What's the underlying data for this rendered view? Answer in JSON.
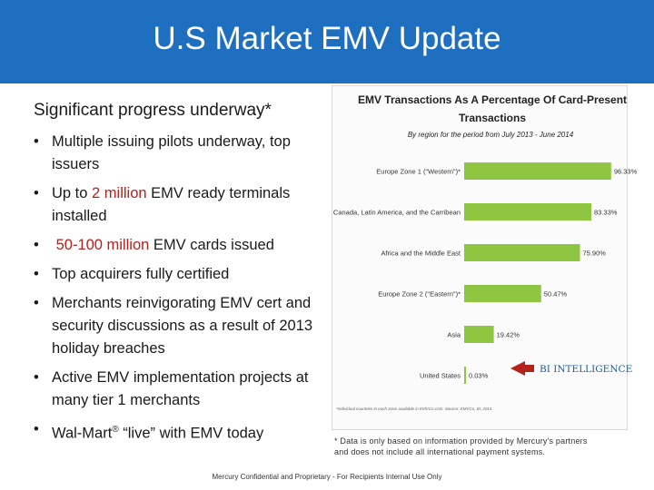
{
  "header": {
    "title": "U.S Market EMV Update"
  },
  "main": {
    "subtitle": "Significant progress underway*",
    "bullets": [
      {
        "pre": "Multiple issuing pilots underway, top issuers",
        "highlight": "",
        "post": ""
      },
      {
        "pre": "Up to ",
        "highlight": "2 million",
        "post": " EMV ready terminals installed"
      },
      {
        "pre": " ",
        "highlight": "50-100 million",
        "post": " EMV cards issued"
      },
      {
        "pre": "Top acquirers fully certified",
        "highlight": "",
        "post": ""
      },
      {
        "pre": "Merchants reinvigorating EMV cert and security discussions as a result of 2013 holiday breaches",
        "highlight": "",
        "post": ""
      },
      {
        "pre": "Active EMV implementation projects at many tier 1 merchants",
        "highlight": "",
        "post": ""
      },
      {
        "pre": "Wal-Mart",
        "sup": "®",
        "post": " “live” with EMV today"
      }
    ]
  },
  "chart_data": {
    "type": "bar",
    "orientation": "horizontal",
    "title": "EMV Transactions As A Percentage Of Card-Present Transactions",
    "subtitle": "By region for the period from July 2013 - June 2014",
    "categories": [
      "Europe Zone 1 (\"Western\")*",
      "Canada, Latin America, and the Carribean",
      "Africa and the Middle East",
      "Europe Zone 2 (\"Eastern\")*",
      "Asia",
      "United States"
    ],
    "values": [
      96.33,
      83.33,
      75.9,
      50.47,
      19.42,
      0.03
    ],
    "value_labels": [
      "96.33%",
      "83.33%",
      "75.90%",
      "50.47%",
      "19.42%",
      "0.03%"
    ],
    "xlim": [
      0,
      100
    ],
    "bar_color": "#8ec641",
    "source_note": "*Individual countries in each zone available in EMVCo.com. Source: EMVCo, BI, 2014",
    "logo_text": "BI INTELLIGENCE",
    "logo_color": "#b3221b"
  },
  "footnote": [
    "* Data is only based on information provided by Mercury's partners",
    "and does not include all international payment systems."
  ],
  "footer": "Mercury Confidential and Proprietary - For Recipients Internal Use Only"
}
